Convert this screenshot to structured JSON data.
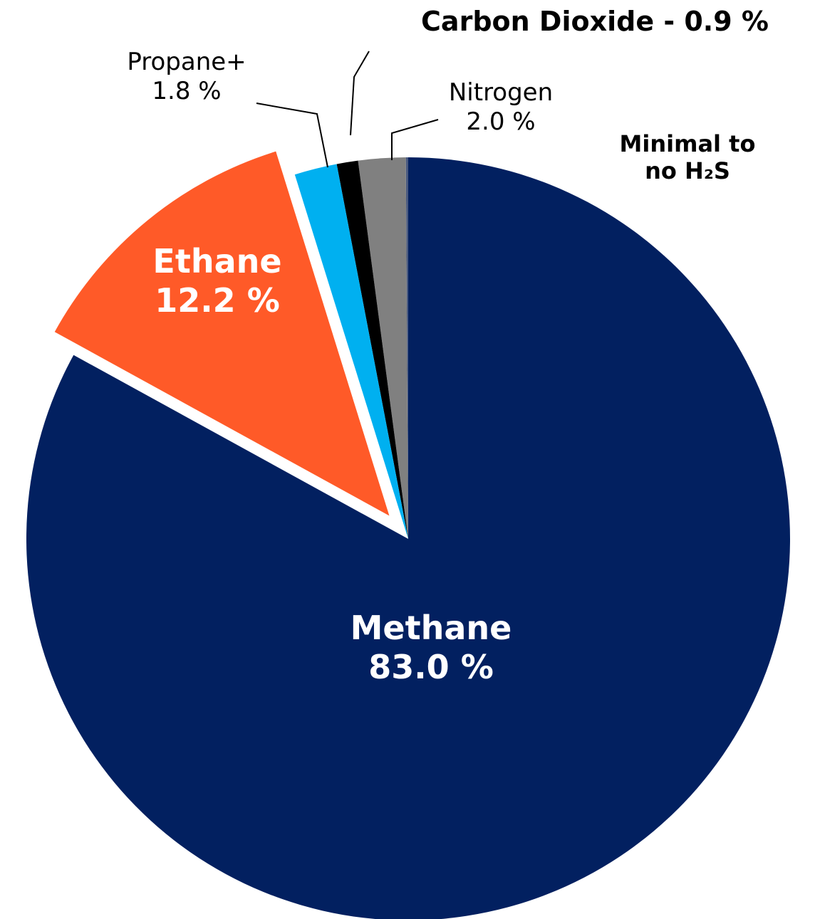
{
  "chart_data": {
    "type": "pie",
    "categories": [
      "Methane",
      "Ethane",
      "Propane+",
      "Carbon Dioxide",
      "Nitrogen",
      "Minimal to no H₂S"
    ],
    "values": [
      83.0,
      12.2,
      1.8,
      0.9,
      2.0,
      0.1
    ],
    "value_labels": [
      "83.0 %",
      "12.2 %",
      "1.8 %",
      "0.9 %",
      "2.0 %",
      null
    ],
    "label_separator": " - ",
    "colors": [
      "#022060",
      "#ff5a28",
      "#00b0f0",
      "#000000",
      "#808080",
      "#4a5a80"
    ],
    "explode": [
      false,
      true,
      false,
      false,
      false,
      false
    ]
  }
}
